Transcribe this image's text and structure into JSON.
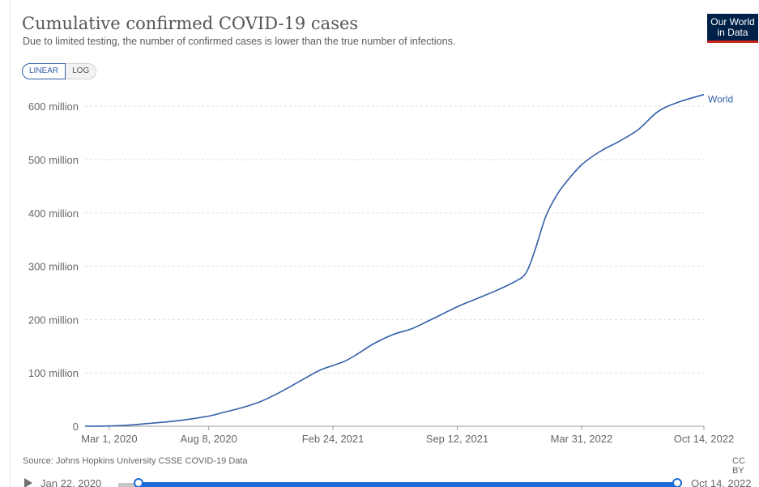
{
  "title": "Cumulative confirmed COVID-19 cases",
  "subtitle": "Due to limited testing, the number of confirmed cases is lower than the true number of infections.",
  "logo": {
    "line1": "Our World",
    "line2": "in Data"
  },
  "scale_toggle": {
    "linear_label": "LINEAR",
    "log_label": "LOG",
    "active": "LINEAR"
  },
  "source": "Source: Johns Hopkins University CSSE COVID-19 Data",
  "license": "CC BY",
  "timeline": {
    "start_label": "Jan 22, 2020",
    "end_label": "Oct 14, 2022"
  },
  "colors": {
    "series": "#3360a9",
    "grid": "#dddddd",
    "axis": "#666666",
    "slider": "#1c6ad4",
    "logo_bg": "#002147",
    "logo_accent": "#ce261e"
  },
  "chart_data": {
    "type": "line",
    "xaxis_type": "date",
    "xlim": [
      "2020-01-22",
      "2022-10-14"
    ],
    "ylim": [
      0,
      620000000
    ],
    "grid": true,
    "x_ticks": [
      {
        "date": "2020-03-01",
        "label": "Mar 1, 2020"
      },
      {
        "date": "2020-08-08",
        "label": "Aug 8, 2020"
      },
      {
        "date": "2021-02-24",
        "label": "Feb 24, 2021"
      },
      {
        "date": "2021-09-12",
        "label": "Sep 12, 2021"
      },
      {
        "date": "2022-03-31",
        "label": "Mar 31, 2022"
      },
      {
        "date": "2022-10-14",
        "label": "Oct 14, 2022"
      }
    ],
    "y_ticks": [
      {
        "value": 0,
        "label": "0"
      },
      {
        "value": 100000000,
        "label": "100 million"
      },
      {
        "value": 200000000,
        "label": "200 million"
      },
      {
        "value": 300000000,
        "label": "300 million"
      },
      {
        "value": 400000000,
        "label": "400 million"
      },
      {
        "value": 500000000,
        "label": "500 million"
      },
      {
        "value": 600000000,
        "label": "600 million"
      }
    ],
    "series": [
      {
        "name": "World",
        "x": [
          "2020-01-22",
          "2020-03-01",
          "2020-04-01",
          "2020-05-01",
          "2020-06-01",
          "2020-07-01",
          "2020-08-08",
          "2020-09-01",
          "2020-10-01",
          "2020-11-01",
          "2020-12-01",
          "2021-01-01",
          "2021-02-01",
          "2021-02-24",
          "2021-03-15",
          "2021-04-01",
          "2021-05-01",
          "2021-06-01",
          "2021-07-01",
          "2021-08-01",
          "2021-09-12",
          "2021-10-15",
          "2021-11-15",
          "2021-12-15",
          "2022-01-01",
          "2022-01-15",
          "2022-02-01",
          "2022-02-15",
          "2022-03-01",
          "2022-03-31",
          "2022-05-01",
          "2022-06-01",
          "2022-07-01",
          "2022-08-01",
          "2022-09-01",
          "2022-10-14"
        ],
        "values": [
          0,
          500000,
          2000000,
          5000000,
          8000000,
          12000000,
          19000000,
          26000000,
          35000000,
          47000000,
          64000000,
          84000000,
          104000000,
          114000000,
          122000000,
          133000000,
          155000000,
          172000000,
          183000000,
          200000000,
          224000000,
          240000000,
          255000000,
          272000000,
          288000000,
          330000000,
          392000000,
          425000000,
          450000000,
          490000000,
          516000000,
          535000000,
          557000000,
          590000000,
          607000000,
          622000000
        ]
      }
    ]
  }
}
